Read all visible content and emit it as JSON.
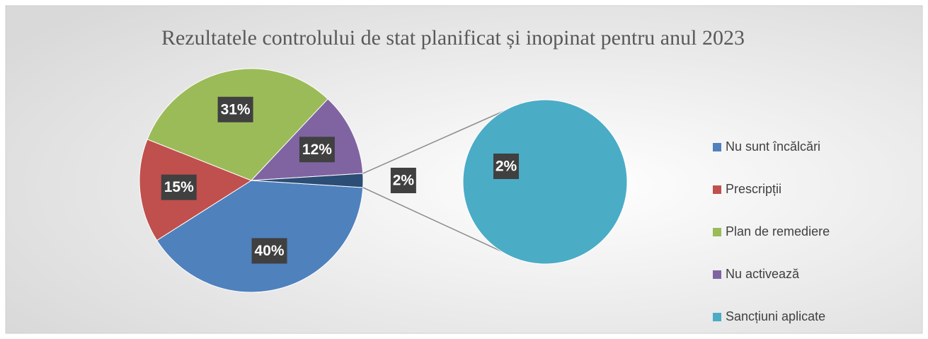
{
  "chart_data": {
    "type": "pie",
    "title": "Rezultatele controlului de stat planificat și inopinat pentru anul 2023",
    "categories": [
      "Nu sunt încălcări",
      "Prescripții",
      "Plan de remediere",
      "Nu activează",
      "Sancțiuni aplicate"
    ],
    "values": [
      40,
      15,
      31,
      12,
      2
    ],
    "value_labels": [
      "40%",
      "15%",
      "31%",
      "12%",
      "2%"
    ],
    "colors": [
      "#4f81bd",
      "#c0504d",
      "#9bbb59",
      "#8064a2",
      "#4bacc6"
    ],
    "other_color": "#2c4d75",
    "legend": "right"
  }
}
